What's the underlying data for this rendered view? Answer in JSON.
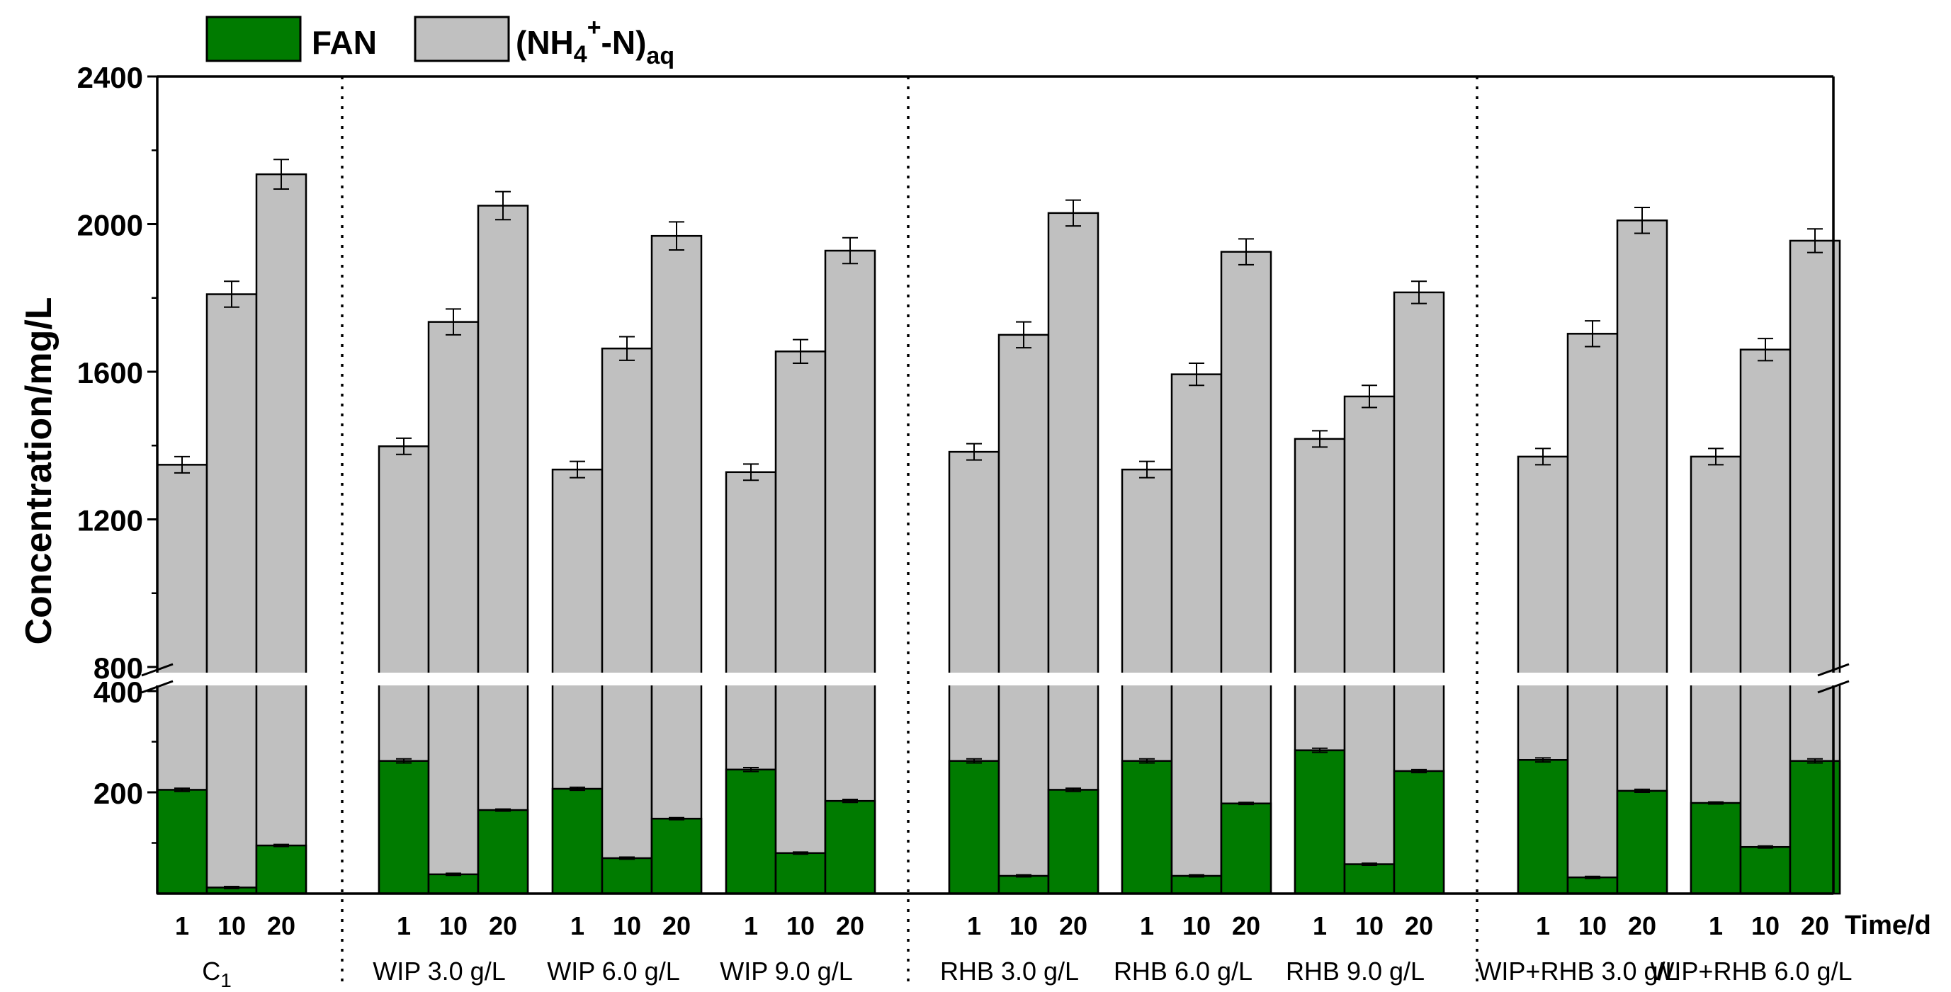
{
  "chart_data": {
    "type": "bar",
    "stacked": true,
    "axis_break": [
      400,
      800
    ],
    "ylabel": "Concentration/mg/L",
    "xlabel": "Time/d",
    "yticks_upper": [
      "2400",
      "2000",
      "1600",
      "1200",
      "800"
    ],
    "yticks_lower": [
      "400",
      "200"
    ],
    "ylim_lower": [
      0,
      400
    ],
    "ylim_upper": [
      800,
      2400
    ],
    "legend": {
      "position": "top-left-outside",
      "items": [
        {
          "label": "FAN",
          "color": "#007b00"
        },
        {
          "label": "(NH4+-N)aq",
          "base": "(NH",
          "sub1": "4",
          "sup": "+",
          "mid": "-N)",
          "sub2": "aq",
          "color": "#c0c0c0"
        }
      ]
    },
    "colors": {
      "fan": "#007b00",
      "ammonium": "#c0c0c0",
      "edge": "#000000"
    },
    "groups": [
      {
        "label": "C",
        "label_sub": "1",
        "times": [
          "1",
          "10",
          "20"
        ],
        "fan": [
          205,
          12,
          95
        ],
        "fan_err": [
          3,
          2,
          2
        ],
        "total": [
          1348,
          1810,
          2135
        ],
        "total_err": [
          22,
          35,
          40
        ]
      },
      {
        "label": "WIP 3.0 g/L",
        "times": [
          "1",
          "10",
          "20"
        ],
        "fan": [
          262,
          38,
          165
        ],
        "fan_err": [
          4,
          2,
          2
        ],
        "total": [
          1398,
          1735,
          2050
        ],
        "total_err": [
          22,
          35,
          38
        ]
      },
      {
        "label": "WIP 6.0 g/L",
        "times": [
          "1",
          "10",
          "20"
        ],
        "fan": [
          207,
          70,
          148
        ],
        "fan_err": [
          3,
          2,
          2
        ],
        "total": [
          1335,
          1663,
          1968
        ],
        "total_err": [
          22,
          32,
          38
        ]
      },
      {
        "label": "WIP 9.0 g/L",
        "times": [
          "1",
          "10",
          "20"
        ],
        "fan": [
          245,
          80,
          183
        ],
        "fan_err": [
          4,
          2,
          3
        ],
        "total": [
          1328,
          1655,
          1928
        ],
        "total_err": [
          22,
          32,
          35
        ]
      },
      {
        "label": "RHB 3.0 g/L",
        "times": [
          "1",
          "10",
          "20"
        ],
        "fan": [
          262,
          35,
          205
        ],
        "fan_err": [
          4,
          2,
          3
        ],
        "total": [
          1383,
          1700,
          2030
        ],
        "total_err": [
          22,
          35,
          35
        ]
      },
      {
        "label": "RHB 6.0 g/L",
        "times": [
          "1",
          "10",
          "20"
        ],
        "fan": [
          262,
          35,
          178
        ],
        "fan_err": [
          4,
          2,
          2
        ],
        "total": [
          1335,
          1593,
          1925
        ],
        "total_err": [
          22,
          30,
          35
        ]
      },
      {
        "label": "RHB 9.0 g/L",
        "times": [
          "1",
          "10",
          "20"
        ],
        "fan": [
          283,
          58,
          242
        ],
        "fan_err": [
          4,
          2,
          3
        ],
        "total": [
          1418,
          1533,
          1815
        ],
        "total_err": [
          22,
          30,
          30
        ]
      },
      {
        "label": "WIP+RHB 3.0 g/L",
        "times": [
          "1",
          "10",
          "20"
        ],
        "fan": [
          264,
          32,
          203
        ],
        "fan_err": [
          4,
          2,
          3
        ],
        "total": [
          1370,
          1703,
          2010
        ],
        "total_err": [
          22,
          35,
          35
        ]
      },
      {
        "label": "WIP+RHB 6.0 g/L",
        "times": [
          "1",
          "10",
          "20"
        ],
        "fan": [
          179,
          92,
          262
        ],
        "fan_err": [
          2,
          2,
          4
        ],
        "total": [
          1370,
          1660,
          1955
        ],
        "total_err": [
          22,
          30,
          32
        ]
      }
    ],
    "separators_after_group": [
      0,
      3,
      6
    ]
  }
}
